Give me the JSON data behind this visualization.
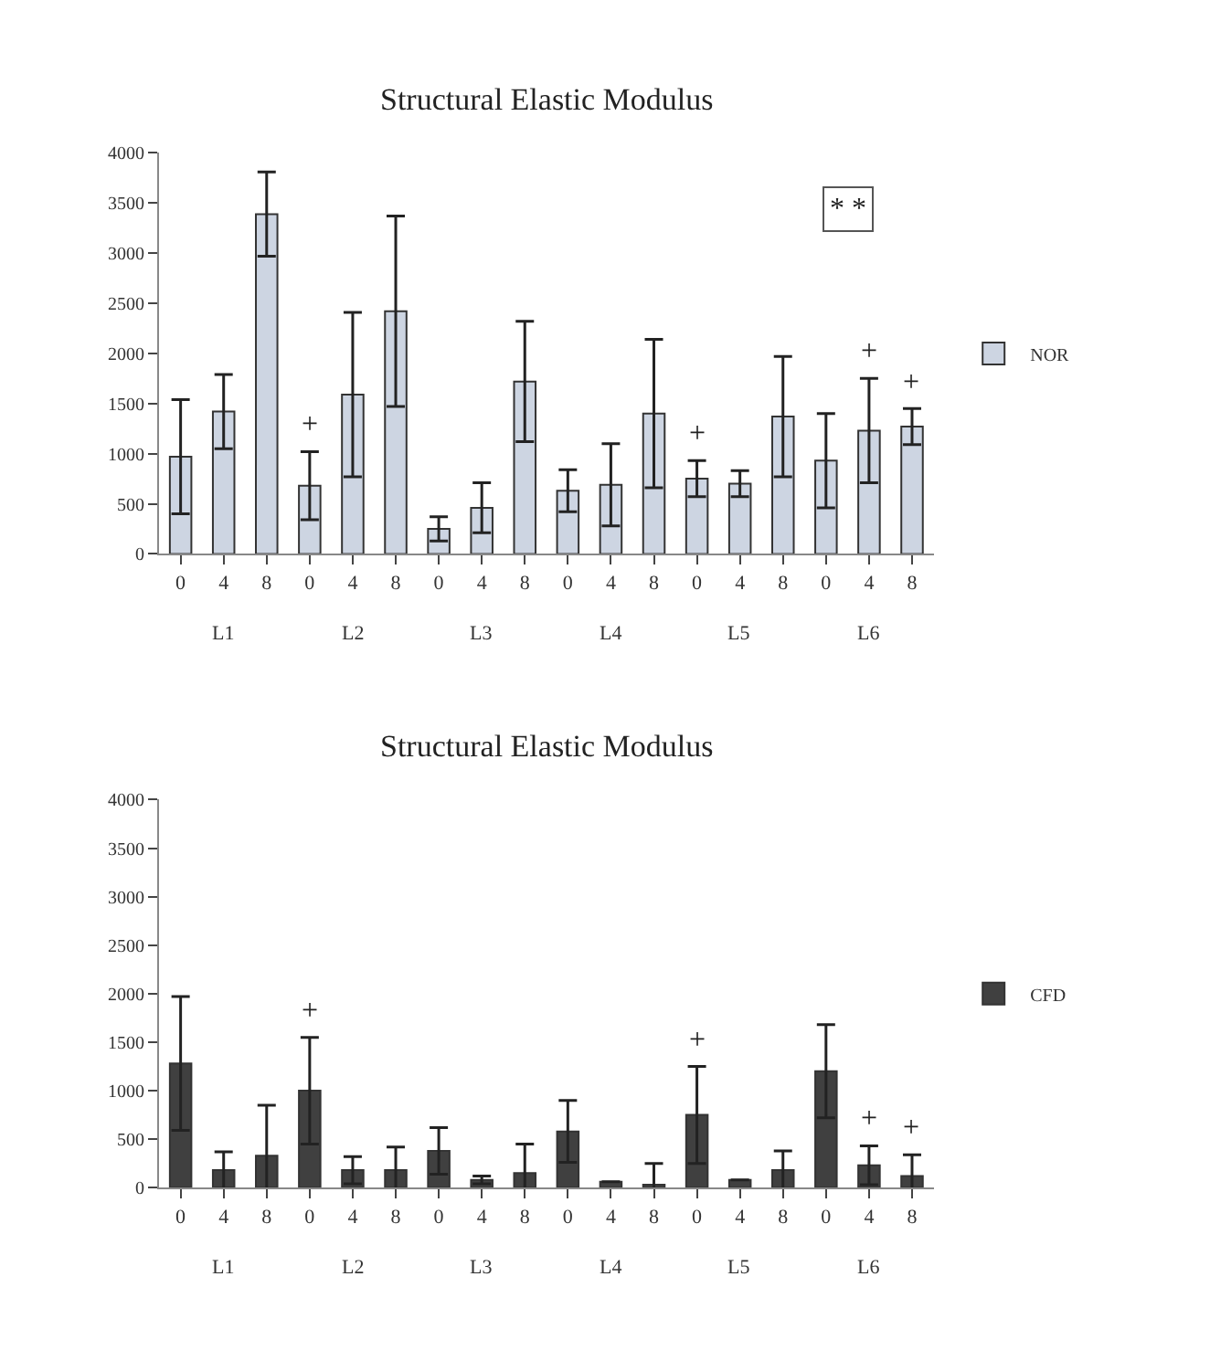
{
  "chart_data": [
    {
      "type": "bar",
      "title": "Structural Elastic Modulus",
      "categories": [
        "0",
        "4",
        "8",
        "0",
        "4",
        "8",
        "0",
        "4",
        "8",
        "0",
        "4",
        "8",
        "0",
        "4",
        "8",
        "0",
        "4",
        "8"
      ],
      "series": [
        {
          "name": "NOR",
          "color": "#cdd5e2",
          "values": [
            970,
            1420,
            3390,
            680,
            1590,
            2420,
            250,
            460,
            1720,
            630,
            690,
            1400,
            750,
            700,
            1370,
            930,
            1230,
            1270
          ],
          "errors": [
            570,
            370,
            420,
            340,
            820,
            950,
            120,
            250,
            600,
            210,
            410,
            740,
            180,
            130,
            600,
            470,
            520,
            180
          ]
        }
      ],
      "ylim": [
        0,
        4000
      ],
      "yticks": [
        0,
        500,
        1000,
        1500,
        2000,
        2500,
        3000,
        3500,
        4000
      ],
      "legend": "right",
      "annotations": [
        "L1",
        "L2",
        "L3",
        "L4",
        "L5",
        "L6",
        "* *",
        "+",
        "+",
        "+",
        "+"
      ]
    },
    {
      "type": "bar",
      "title": "Structural Elastic Modulus",
      "categories": [
        "0",
        "4",
        "8",
        "0",
        "4",
        "8",
        "0",
        "4",
        "8",
        "0",
        "4",
        "8",
        "0",
        "4",
        "8",
        "0",
        "4",
        "8"
      ],
      "series": [
        {
          "name": "CFD",
          "color": "#404040",
          "values": [
            1280,
            180,
            330,
            1000,
            180,
            180,
            380,
            80,
            150,
            580,
            60,
            30,
            750,
            80,
            180,
            1200,
            230,
            120
          ],
          "errors": [
            690,
            190,
            520,
            550,
            140,
            240,
            240,
            40,
            300,
            320,
            null,
            220,
            500,
            null,
            200,
            480,
            200,
            220
          ]
        }
      ],
      "ylim": [
        0,
        4000
      ],
      "yticks": [
        0,
        500,
        1000,
        1500,
        2000,
        2500,
        3000,
        3500,
        4000
      ],
      "legend": "right",
      "annotations": [
        "L1",
        "L2",
        "L3",
        "L4",
        "L5",
        "L6",
        "+",
        "+",
        "+",
        "+"
      ]
    }
  ]
}
